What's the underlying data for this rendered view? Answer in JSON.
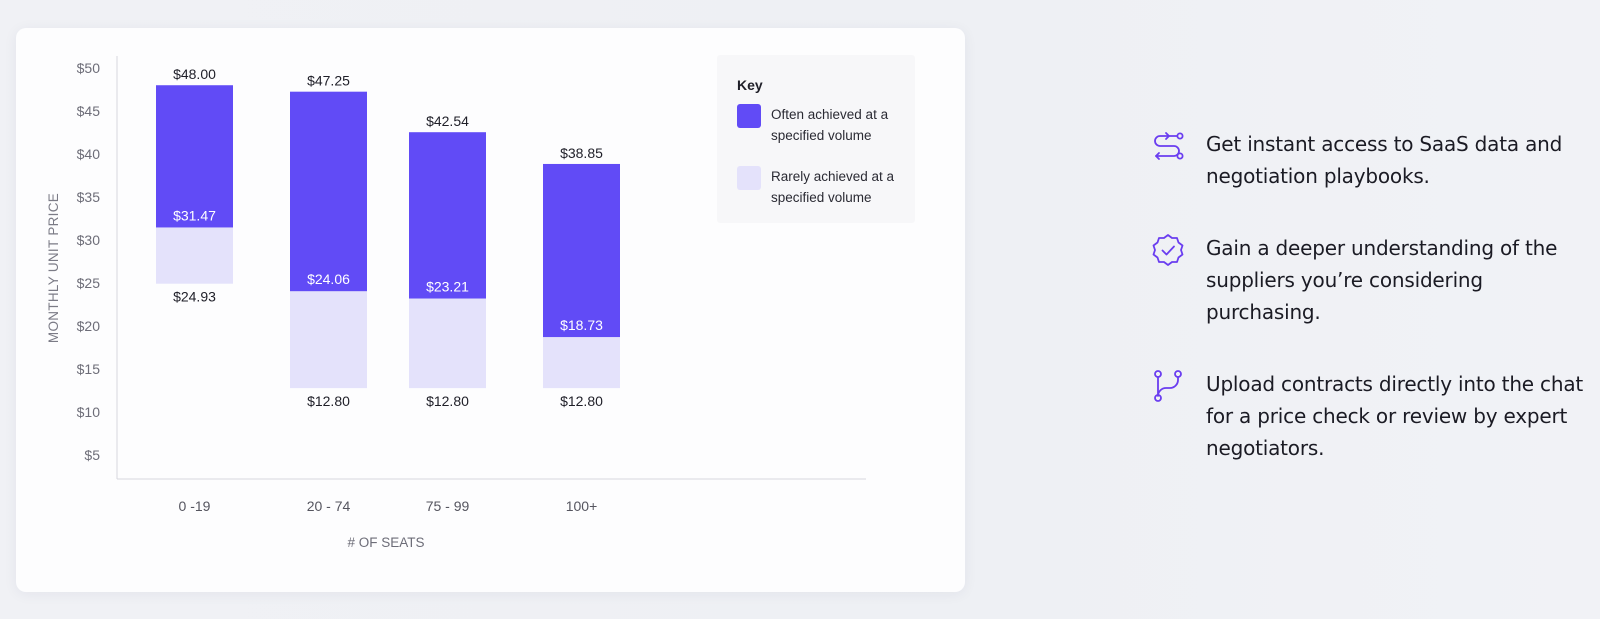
{
  "chart_data": {
    "type": "bar",
    "xlabel": "# OF SEATS",
    "ylabel": "MONTHLY UNIT PRICE",
    "ylim": [
      0,
      51
    ],
    "yticks": [
      "$5",
      "$10",
      "$15",
      "$20",
      "$25",
      "$30",
      "$35",
      "$40",
      "$45",
      "$50"
    ],
    "ytick_values": [
      5,
      10,
      15,
      20,
      25,
      30,
      35,
      40,
      45,
      50
    ],
    "categories": [
      "0 -19",
      "20 - 74",
      "75 - 99",
      "100+"
    ],
    "series": [
      {
        "name": "Rarely achieved at a specified volume",
        "color": "#e4e2fb",
        "low": [
          24.93,
          12.8,
          12.8,
          12.8
        ],
        "high": [
          31.47,
          24.06,
          23.21,
          18.73
        ],
        "low_labels": [
          "$24.93",
          "$12.80",
          "$12.80",
          "$12.80"
        ]
      },
      {
        "name": "Often achieved at a specified volume",
        "color": "#614bf6",
        "low": [
          31.47,
          24.06,
          23.21,
          18.73
        ],
        "high": [
          48.0,
          47.25,
          42.54,
          38.85
        ],
        "mid_labels": [
          "$31.47",
          "$24.06",
          "$23.21",
          "$18.73"
        ],
        "top_labels": [
          "$48.00",
          "$47.25",
          "$42.54",
          "$38.85"
        ]
      }
    ],
    "legend": {
      "title": "Key",
      "position": "top-right",
      "items": [
        {
          "color": "#614bf6",
          "line1": "Often achieved at a",
          "line2": "specified volume"
        },
        {
          "color": "#e4e2fb",
          "line1": "Rarely achieved at a",
          "line2": "specified volume"
        }
      ]
    },
    "grid": false
  },
  "features": [
    {
      "icon": "route-arrows-icon",
      "line1": "Get instant access to SaaS data and",
      "line2": "negotiation playbooks.",
      "line3": ""
    },
    {
      "icon": "verified-badge-icon",
      "line1": "Gain a deeper understanding of the",
      "line2": "suppliers you’re considering",
      "line3": "purchasing."
    },
    {
      "icon": "git-branch-icon",
      "line1": "Upload contracts directly into the chat",
      "line2": "for a price check or review by expert",
      "line3": "negotiators."
    }
  ],
  "colors": {
    "accent": "#614bf6",
    "accent_light": "#e4e2fb",
    "icon": "#6a3df0"
  }
}
